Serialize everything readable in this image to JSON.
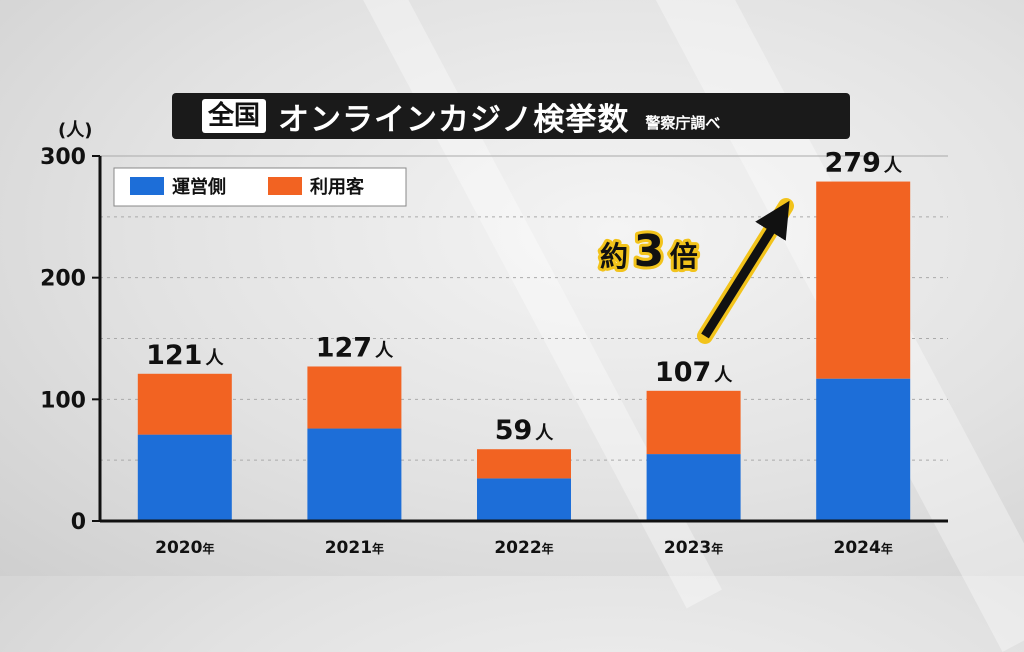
{
  "title": {
    "badge": "全国",
    "main": "オンラインカジノ検挙数",
    "source": "警察庁調べ"
  },
  "unit_label": "(人)",
  "annotation": {
    "prefix": "約",
    "number": "3",
    "suffix": "倍"
  },
  "colors": {
    "operator": "#1d6ed8",
    "user": "#f26322",
    "axis": "#111111",
    "grid": "#aaaaaa",
    "arrow": "#111111",
    "arrow_outline": "#f2c31b"
  },
  "chart_data": {
    "type": "bar",
    "stacked": true,
    "categories": [
      "2020",
      "2021",
      "2022",
      "2023",
      "2024"
    ],
    "category_suffix": "年",
    "series": [
      {
        "name": "運営側",
        "values": [
          71,
          76,
          35,
          55,
          117
        ]
      },
      {
        "name": "利用客",
        "values": [
          50,
          51,
          24,
          52,
          162
        ]
      }
    ],
    "totals": [
      121,
      127,
      59,
      107,
      279
    ],
    "total_unit": "人",
    "ylim": [
      0,
      300
    ],
    "yticks": [
      0,
      100,
      200,
      300
    ],
    "grid": true,
    "legend_position": "top-left"
  }
}
